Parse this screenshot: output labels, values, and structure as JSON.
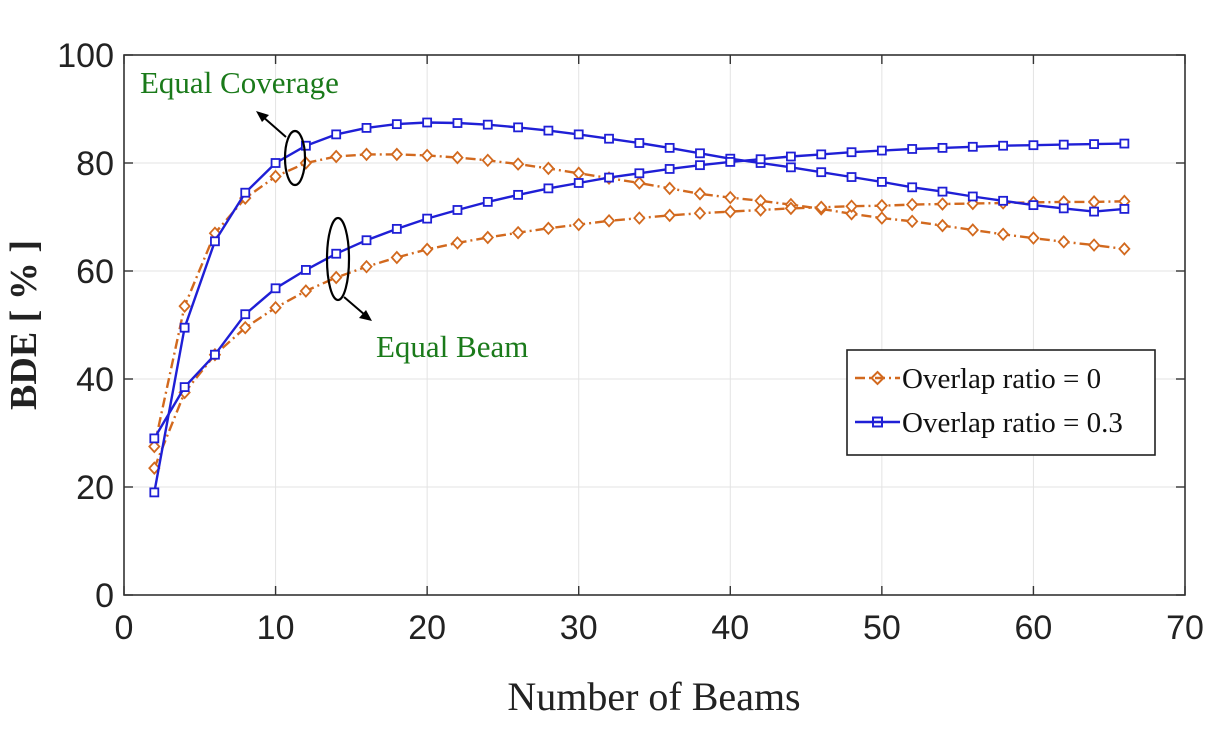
{
  "chart_data": {
    "type": "line",
    "title": "",
    "xlabel": "Number of Beams",
    "ylabel": "BDE [ % ]",
    "xlim": [
      0,
      70
    ],
    "ylim": [
      0,
      100
    ],
    "xticks": [
      0,
      10,
      20,
      30,
      40,
      50,
      60,
      70
    ],
    "yticks": [
      0,
      20,
      40,
      60,
      80,
      100
    ],
    "grid": true,
    "legend_position": "right",
    "x": [
      2,
      4,
      6,
      8,
      10,
      12,
      14,
      16,
      18,
      20,
      22,
      24,
      26,
      28,
      30,
      32,
      34,
      36,
      38,
      40,
      42,
      44,
      46,
      48,
      50,
      52,
      54,
      56,
      58,
      60,
      62,
      64,
      66
    ],
    "series": [
      {
        "name": "Overlap ratio = 0",
        "group": "Equal Coverage",
        "color": "#d2691e",
        "marker": "diamond",
        "dash": "dashdot",
        "values": [
          27.5,
          53.5,
          67,
          73.5,
          77.5,
          80,
          81.2,
          81.6,
          81.6,
          81.4,
          81,
          80.5,
          79.8,
          79,
          78.1,
          77.2,
          76.3,
          75.3,
          74.3,
          73.6,
          73,
          72.3,
          71.5,
          70.6,
          69.8,
          69.2,
          68.4,
          67.6,
          66.8,
          66.1,
          65.4,
          64.8,
          64.1
        ]
      },
      {
        "name": "Overlap ratio = 0",
        "group": "Equal Beam",
        "color": "#d2691e",
        "marker": "diamond",
        "dash": "dashdot",
        "values": [
          23.5,
          37.5,
          44.5,
          49.5,
          53.2,
          56.3,
          58.8,
          60.8,
          62.5,
          64,
          65.2,
          66.2,
          67.1,
          67.9,
          68.6,
          69.3,
          69.8,
          70.3,
          70.7,
          71,
          71.3,
          71.6,
          71.8,
          72,
          72.1,
          72.3,
          72.4,
          72.5,
          72.6,
          72.7,
          72.8,
          72.8,
          72.9
        ]
      },
      {
        "name": "Overlap ratio = 0.3",
        "group": "Equal Coverage",
        "color": "#1f1fd6",
        "marker": "square",
        "dash": "solid",
        "values": [
          19,
          49.5,
          65.5,
          74.5,
          80,
          83.2,
          85.3,
          86.5,
          87.2,
          87.5,
          87.4,
          87.1,
          86.6,
          86,
          85.3,
          84.5,
          83.7,
          82.8,
          81.8,
          80.8,
          80,
          79.2,
          78.3,
          77.4,
          76.5,
          75.5,
          74.7,
          73.8,
          73,
          72.2,
          71.6,
          71,
          71.5
        ]
      },
      {
        "name": "Overlap ratio = 0.3",
        "group": "Equal Beam",
        "color": "#1f1fd6",
        "marker": "square",
        "dash": "solid",
        "values": [
          29,
          38.5,
          44.5,
          52,
          56.8,
          60.2,
          63.2,
          65.7,
          67.8,
          69.7,
          71.3,
          72.8,
          74.1,
          75.3,
          76.3,
          77.3,
          78.1,
          78.9,
          79.6,
          80.2,
          80.7,
          81.2,
          81.6,
          82,
          82.3,
          82.6,
          82.8,
          83,
          83.2,
          83.3,
          83.4,
          83.5,
          83.6
        ]
      }
    ],
    "legend": [
      "Overlap ratio = 0",
      "Overlap ratio = 0.3"
    ],
    "annotations": [
      {
        "text": "Equal Coverage",
        "color": "#1a7a1a"
      },
      {
        "text": "Equal Beam",
        "color": "#1a7a1a"
      }
    ]
  }
}
